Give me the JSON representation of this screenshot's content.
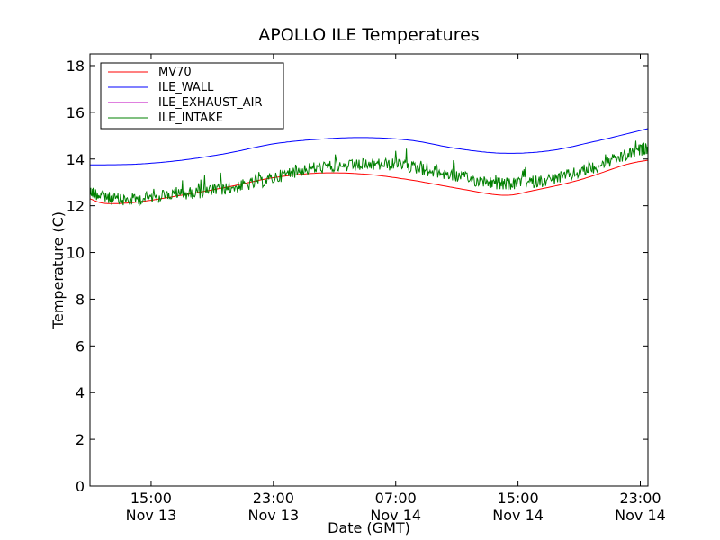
{
  "chart_data": {
    "type": "line",
    "title": "APOLLO ILE Temperatures",
    "xlabel": "Date (GMT)",
    "ylabel": "Temperature (C)",
    "x_range": [
      "2013-11-13 11:00",
      "2013-11-14 23:30"
    ],
    "ylim": [
      0,
      18.5
    ],
    "y_ticks": [
      0,
      2,
      4,
      6,
      8,
      10,
      12,
      14,
      16,
      18
    ],
    "x_ticks": [
      {
        "time": "2013-11-13 15:00",
        "label_time": "15:00",
        "label_date": "Nov 13"
      },
      {
        "time": "2013-11-13 23:00",
        "label_time": "23:00",
        "label_date": "Nov 13"
      },
      {
        "time": "2013-11-14 07:00",
        "label_time": "07:00",
        "label_date": "Nov 14"
      },
      {
        "time": "2013-11-14 15:00",
        "label_time": "15:00",
        "label_date": "Nov 14"
      },
      {
        "time": "2013-11-14 23:00",
        "label_time": "23:00",
        "label_date": "Nov 14"
      }
    ],
    "grid": false,
    "legend_position": "top-left",
    "series": [
      {
        "name": "MV70",
        "color": "#ff0000",
        "x": [
          "2013-11-13 11:00",
          "2013-11-13 12:00",
          "2013-11-13 14:00",
          "2013-11-13 17:00",
          "2013-11-13 20:00",
          "2013-11-13 23:00",
          "2013-11-14 02:00",
          "2013-11-14 05:00",
          "2013-11-14 08:00",
          "2013-11-14 11:00",
          "2013-11-14 14:00",
          "2013-11-14 16:00",
          "2013-11-14 19:00",
          "2013-11-14 22:00",
          "2013-11-14 23:30"
        ],
        "y": [
          12.3,
          12.1,
          12.15,
          12.45,
          12.8,
          13.2,
          13.4,
          13.35,
          13.1,
          12.75,
          12.45,
          12.65,
          13.1,
          13.75,
          13.95
        ]
      },
      {
        "name": "ILE_WALL",
        "color": "#0000ff",
        "x": [
          "2013-11-13 11:00",
          "2013-11-13 14:00",
          "2013-11-13 17:00",
          "2013-11-13 20:00",
          "2013-11-13 23:00",
          "2013-11-14 02:00",
          "2013-11-14 05:00",
          "2013-11-14 08:00",
          "2013-11-14 11:00",
          "2013-11-14 14:00",
          "2013-11-14 17:00",
          "2013-11-14 20:00",
          "2013-11-14 23:30"
        ],
        "y": [
          13.75,
          13.78,
          13.95,
          14.25,
          14.65,
          14.85,
          14.92,
          14.8,
          14.45,
          14.25,
          14.35,
          14.75,
          15.3
        ]
      },
      {
        "name": "ILE_EXHAUST_AIR",
        "color": "#bf00bf",
        "x": [],
        "y": []
      },
      {
        "name": "ILE_INTAKE",
        "color": "#008000",
        "x": [
          "2013-11-13 11:00",
          "2013-11-13 13:00",
          "2013-11-13 16:00",
          "2013-11-13 19:00",
          "2013-11-13 22:00",
          "2013-11-14 01:00",
          "2013-11-14 04:00",
          "2013-11-14 07:00",
          "2013-11-14 10:00",
          "2013-11-14 13:00",
          "2013-11-14 15:00",
          "2013-11-14 18:00",
          "2013-11-14 21:00",
          "2013-11-14 23:30"
        ],
        "y": [
          12.6,
          12.25,
          12.45,
          12.65,
          13.0,
          13.55,
          13.7,
          13.75,
          13.4,
          13.0,
          12.95,
          13.25,
          13.9,
          14.5
        ]
      }
    ]
  }
}
